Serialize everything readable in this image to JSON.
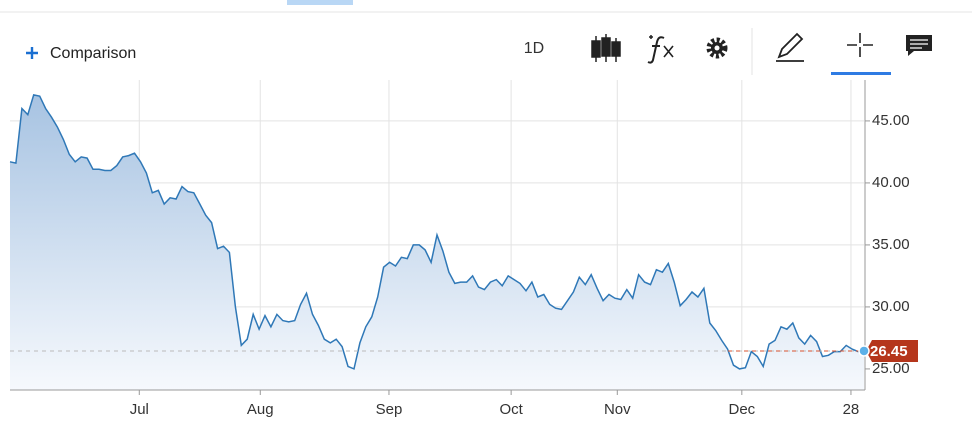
{
  "toolbar": {
    "comparison": "Comparison",
    "interval": "1D"
  },
  "chart_data": {
    "type": "area",
    "values": [
      41.7,
      41.6,
      46,
      45.5,
      47.1,
      47,
      46,
      45.3,
      44.5,
      43.5,
      42.3,
      41.7,
      42.1,
      42,
      41.1,
      41.1,
      41,
      41,
      41.4,
      42.1,
      42.2,
      42.4,
      41.7,
      40.8,
      39.2,
      39.4,
      38.3,
      38.8,
      38.7,
      39.7,
      39.3,
      39.2,
      38.3,
      37.4,
      36.8,
      34.7,
      34.9,
      34.4,
      30,
      26.9,
      27.4,
      29.4,
      28.2,
      29.3,
      28.4,
      29.4,
      28.9,
      28.8,
      28.9,
      30.2,
      31.1,
      29.4,
      28.5,
      27.4,
      27.1,
      27.4,
      26.8,
      25.2,
      25.0,
      27.1,
      28.4,
      29.2,
      30.8,
      33.2,
      33.6,
      33.3,
      34,
      33.9,
      35,
      35,
      34.6,
      33.6,
      35.8,
      34.5,
      32.8,
      31.9,
      32,
      32,
      32.5,
      31.6,
      31.4,
      32,
      32.2,
      31.7,
      32.5,
      32.2,
      31.9,
      31.3,
      32,
      30.8,
      31,
      30.2,
      29.9,
      29.8,
      30.5,
      31.2,
      32.4,
      31.8,
      32.6,
      31.5,
      30.5,
      31,
      30.7,
      30.6,
      31.4,
      30.7,
      32.6,
      32,
      31.8,
      33,
      32.8,
      33.5,
      32,
      30.1,
      30.6,
      31.2,
      30.8,
      31.5,
      28.7,
      28.1,
      27.3,
      26.6,
      25.3,
      25,
      25.1,
      26.4,
      26,
      25.2,
      27,
      27.3,
      28.4,
      28.2,
      28.7,
      27.5,
      27,
      27.7,
      27.2,
      26,
      26.1,
      26.4,
      26.4,
      26.9,
      26.6,
      26.4,
      26.45
    ],
    "color": "#2f78b7",
    "xlim": [
      0,
      144
    ],
    "xticks": [
      {
        "value": 21.8,
        "label": "Jul"
      },
      {
        "value": 42.2,
        "label": "Aug"
      },
      {
        "value": 63.9,
        "label": "Sep"
      },
      {
        "value": 84.5,
        "label": "Oct"
      },
      {
        "value": 102.4,
        "label": "Nov"
      },
      {
        "value": 123.4,
        "label": "Dec"
      },
      {
        "value": 141.8,
        "label": "28"
      }
    ],
    "ylim": [
      23.3,
      48.3
    ],
    "yticks": [
      {
        "value": 25,
        "label": "25.00"
      },
      {
        "value": 30,
        "label": "30.00"
      },
      {
        "value": 35,
        "label": "35.00"
      },
      {
        "value": 40,
        "label": "40.00"
      },
      {
        "value": 45,
        "label": "45.00"
      }
    ],
    "last_value": 26.45,
    "grid": true
  }
}
